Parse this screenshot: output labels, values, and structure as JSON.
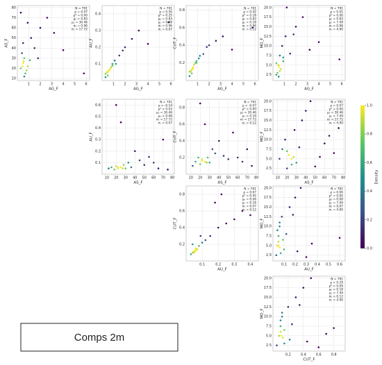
{
  "chart_data": [
    {
      "type": "scatter",
      "xlabel": "AG_F",
      "ylabel": "AS_F",
      "xlim": [
        0,
        6.3
      ],
      "ylim": [
        8,
        82
      ],
      "xticks": [
        1,
        2,
        3,
        4,
        5,
        6
      ],
      "yticks": [
        10,
        20,
        30,
        40,
        50,
        60,
        70,
        80
      ],
      "grid": true,
      "annotations": [
        "N = 791",
        "ρ = 0.07",
        "ρ² = 0.00",
        "μ₀ = 0.83",
        "μ₁ = 30.46",
        "σ₀ = 0.96",
        "σ₁ = 17.72"
      ],
      "x": [
        0.3,
        0.5,
        0.6,
        0.8,
        0.4,
        0.9,
        1.1,
        0.7,
        1.5,
        2.0,
        2.6,
        1.2,
        0.5,
        0.3,
        3.2,
        4.0,
        5.8,
        1.8,
        0.6,
        0.9,
        0.45,
        0.55
      ],
      "y": [
        20,
        25,
        30,
        18,
        35,
        22,
        28,
        15,
        40,
        60,
        70,
        50,
        45,
        75,
        55,
        38,
        15,
        30,
        12,
        65,
        22,
        27
      ]
    },
    {
      "type": "scatter",
      "xlabel": "AG_F",
      "ylabel": "AU_F",
      "xlim": [
        0,
        6.3
      ],
      "ylim": [
        0,
        0.45
      ],
      "xticks": [
        1,
        2,
        3,
        4,
        5,
        6
      ],
      "yticks": [
        0.1,
        0.2,
        0.3,
        0.4
      ],
      "grid": true,
      "annotations": [
        "N = 791",
        "ρ = 0.50",
        "ρ² = 0.25",
        "μ₀ = 0.83",
        "μ₁ = 0.08",
        "σ₀ = 0.96",
        "σ₁ = 0.07"
      ],
      "x": [
        0.3,
        0.5,
        0.6,
        0.8,
        0.4,
        0.9,
        1.1,
        0.7,
        1.5,
        2.0,
        2.6,
        1.2,
        0.5,
        0.3,
        3.2,
        4.0,
        5.8,
        1.8,
        0.6,
        0.9,
        0.45,
        0.55
      ],
      "y": [
        0.04,
        0.05,
        0.06,
        0.08,
        0.05,
        0.1,
        0.12,
        0.07,
        0.15,
        0.2,
        0.25,
        0.1,
        0.03,
        0.02,
        0.3,
        0.22,
        0.35,
        0.18,
        0.06,
        0.09,
        0.05,
        0.06
      ]
    },
    {
      "type": "scatter",
      "xlabel": "AG_F",
      "ylabel": "CUT_F",
      "xlim": [
        0,
        6.3
      ],
      "ylim": [
        0,
        0.85
      ],
      "xticks": [
        1,
        2,
        3,
        4,
        5,
        6
      ],
      "yticks": [
        0.2,
        0.4,
        0.6,
        0.8
      ],
      "grid": true,
      "annotations": [
        "N = 791",
        "ρ = 0.42",
        "ρ² = 0.18",
        "μ₀ = 0.83",
        "μ₁ = 0.18",
        "σ₀ = 0.96",
        "σ₁ = 0.12"
      ],
      "x": [
        0.3,
        0.5,
        0.6,
        0.8,
        0.4,
        0.9,
        1.1,
        0.7,
        1.5,
        2.0,
        2.6,
        1.2,
        0.5,
        0.3,
        3.2,
        4.0,
        5.8,
        1.8,
        0.6,
        0.9,
        0.45,
        0.55
      ],
      "y": [
        0.1,
        0.12,
        0.15,
        0.2,
        0.1,
        0.22,
        0.25,
        0.18,
        0.3,
        0.4,
        0.45,
        0.28,
        0.08,
        0.05,
        0.5,
        0.35,
        0.6,
        0.38,
        0.14,
        0.2,
        0.12,
        0.13
      ]
    },
    {
      "type": "scatter",
      "xlabel": "AG_F",
      "ylabel": "MO_F",
      "xlim": [
        0,
        6.3
      ],
      "ylim": [
        1,
        20.5
      ],
      "xticks": [
        1,
        2,
        3,
        4,
        5,
        6
      ],
      "yticks": [
        2.5,
        {
          "value": 5,
          "label": "5.0"
        },
        7.5,
        {
          "value": 10,
          "label": "10.0"
        },
        12.5,
        {
          "value": 15,
          "label": "15.0"
        },
        17.5,
        {
          "value": 20,
          "label": "20.0"
        }
      ],
      "grid": true,
      "annotations": [
        "N = 791",
        "ρ = 0.01",
        "ρ² = 0.00",
        "μ₀ = 0.83",
        "μ₁ = 7.49",
        "σ₀ = 0.96",
        "σ₁ = 4.90"
      ],
      "x": [
        0.3,
        0.5,
        0.6,
        0.8,
        0.4,
        0.9,
        1.1,
        0.7,
        1.5,
        2.0,
        2.6,
        1.2,
        0.5,
        0.3,
        3.2,
        4.0,
        5.8,
        1.8,
        0.6,
        0.9,
        0.45,
        0.55
      ],
      "y": [
        2.5,
        5,
        7.5,
        10,
        3,
        6,
        12.5,
        4,
        8,
        15,
        17.5,
        20,
        2,
        5.5,
        9,
        11,
        6.5,
        13,
        3.5,
        7,
        5,
        4.5
      ]
    },
    {
      "type": "scatter",
      "xlabel": "AS_F",
      "ylabel": "AU_F",
      "xlim": [
        5,
        82
      ],
      "ylim": [
        0,
        0.65
      ],
      "xticks": [
        10,
        20,
        30,
        40,
        50,
        60,
        70,
        80
      ],
      "yticks": [
        0.1,
        0.2,
        0.3,
        0.4,
        0.5,
        0.6
      ],
      "grid": true,
      "annotations": [
        "N = 791",
        "ρ = -0.14",
        "ρ² = 0.02",
        "μ₀ = 30.46",
        "μ₁ = 0.08",
        "σ₀ = 17.72",
        "σ₁ = 0.07"
      ],
      "x": [
        12,
        15,
        18,
        20,
        22,
        25,
        28,
        30,
        33,
        36,
        40,
        45,
        50,
        55,
        60,
        65,
        70,
        75,
        25,
        20,
        22,
        27
      ],
      "y": [
        0.05,
        0.06,
        0.04,
        0.07,
        0.05,
        0.06,
        0.08,
        0.05,
        0.1,
        0.06,
        0.2,
        0.12,
        0.08,
        0.15,
        0.1,
        0.05,
        0.3,
        0.04,
        0.45,
        0.6,
        0.06,
        0.05
      ]
    },
    {
      "type": "scatter",
      "xlabel": "AS_F",
      "ylabel": "CUT_F",
      "xlim": [
        5,
        82
      ],
      "ylim": [
        0,
        0.9
      ],
      "xticks": [
        10,
        20,
        30,
        40,
        50,
        60,
        70,
        80
      ],
      "yticks": [
        0.2,
        0.4,
        0.6,
        0.8
      ],
      "grid": true,
      "annotations": [
        "N = 791",
        "ρ = -0.07",
        "ρ² = 0.00",
        "μ₀ = 30.46",
        "μ₁ = 0.18",
        "σ₀ = 17.72",
        "σ₁ = 0.12"
      ],
      "x": [
        12,
        15,
        18,
        20,
        22,
        25,
        28,
        30,
        33,
        36,
        40,
        45,
        50,
        55,
        60,
        65,
        70,
        75,
        25,
        20,
        22,
        27
      ],
      "y": [
        0.1,
        0.15,
        0.2,
        0.12,
        0.18,
        0.15,
        0.2,
        0.14,
        0.3,
        0.25,
        0.4,
        0.22,
        0.18,
        0.5,
        0.2,
        0.15,
        0.3,
        0.1,
        0.6,
        0.85,
        0.16,
        0.14
      ]
    },
    {
      "type": "scatter",
      "xlabel": "AS_F",
      "ylabel": "MO_F",
      "xlim": [
        5,
        82
      ],
      "ylim": [
        1,
        20.5
      ],
      "xticks": [
        10,
        20,
        30,
        40,
        50,
        60,
        70,
        80
      ],
      "yticks": [
        2.5,
        {
          "value": 5,
          "label": "5.0"
        },
        7.5,
        {
          "value": 10,
          "label": "10.0"
        },
        12.5,
        {
          "value": 15,
          "label": "15.0"
        },
        17.5,
        {
          "value": 20,
          "label": "20.0"
        }
      ],
      "grid": true,
      "annotations": [
        "N = 791",
        "ρ = 0.07",
        "ρ² = 0.00",
        "μ₀ = 30.46",
        "μ₁ = 7.49",
        "σ₀ = 17.72",
        "σ₁ = 4.90"
      ],
      "x": [
        12,
        15,
        18,
        20,
        22,
        25,
        28,
        30,
        33,
        36,
        40,
        45,
        50,
        55,
        60,
        65,
        70,
        75,
        25,
        20,
        22,
        27
      ],
      "y": [
        5,
        7.5,
        10,
        2.5,
        6,
        5,
        12.5,
        4,
        8,
        15,
        17.5,
        20,
        3,
        5.5,
        9,
        11,
        6.5,
        13,
        3.5,
        7,
        6,
        5.5
      ]
    },
    {
      "type": "scatter",
      "xlabel": "AU_F",
      "ylabel": "CUT_F",
      "xlim": [
        0,
        0.45
      ],
      "ylim": [
        0,
        0.9
      ],
      "xticks": [
        0.1,
        0.2,
        0.3,
        0.4
      ],
      "yticks": [
        0.2,
        0.4,
        0.6,
        0.8
      ],
      "grid": true,
      "annotations": [
        "N = 791",
        "ρ = 0.67",
        "ρ² = 0.45",
        "μ₀ = 0.08",
        "μ₁ = 0.18",
        "σ₀ = 0.07",
        "σ₁ = 0.12"
      ],
      "x": [
        0.03,
        0.04,
        0.05,
        0.06,
        0.07,
        0.05,
        0.08,
        0.1,
        0.12,
        0.15,
        0.2,
        0.25,
        0.3,
        0.35,
        0.04,
        0.06,
        0.09,
        0.18,
        0.22,
        0.4,
        0.05,
        0.06
      ],
      "y": [
        0.08,
        0.1,
        0.12,
        0.15,
        0.14,
        0.1,
        0.18,
        0.22,
        0.25,
        0.3,
        0.4,
        0.45,
        0.5,
        0.6,
        0.2,
        0.12,
        0.3,
        0.7,
        0.8,
        0.55,
        0.11,
        0.13
      ]
    },
    {
      "type": "scatter",
      "xlabel": "AU_F",
      "ylabel": "MO_F",
      "xlim": [
        0,
        0.65
      ],
      "ylim": [
        1,
        20.5
      ],
      "xticks": [
        0.1,
        0.2,
        0.3,
        0.4,
        0.5,
        0.6
      ],
      "yticks": [
        2.5,
        {
          "value": 5,
          "label": "5.0"
        },
        7.5,
        {
          "value": 10,
          "label": "10.0"
        },
        12.5,
        {
          "value": 15,
          "label": "15.0"
        },
        17.5,
        {
          "value": 20,
          "label": "20.0"
        }
      ],
      "grid": true,
      "annotations": [
        "N = 791",
        "ρ = 0.06",
        "ρ² = 0.00",
        "μ₀ = 0.08",
        "μ₁ = 7.49",
        "σ₀ = 0.07",
        "σ₁ = 4.90"
      ],
      "x": [
        0.03,
        0.04,
        0.05,
        0.06,
        0.07,
        0.05,
        0.08,
        0.1,
        0.12,
        0.15,
        0.2,
        0.25,
        0.3,
        0.35,
        0.04,
        0.06,
        0.09,
        0.18,
        0.22,
        0.6,
        0.05,
        0.06
      ],
      "y": [
        2.5,
        5,
        7.5,
        10,
        3,
        6,
        12.5,
        4,
        8,
        15,
        17.5,
        20,
        2,
        5.5,
        9,
        11,
        6.5,
        13,
        3.5,
        7,
        5,
        4.5
      ]
    },
    {
      "type": "scatter",
      "xlabel": "CUT_F",
      "ylabel": "MO_F",
      "xlim": [
        0,
        0.95
      ],
      "ylim": [
        1,
        20.5
      ],
      "xticks": [
        0.2,
        0.4,
        0.6,
        0.8
      ],
      "yticks": [
        2.5,
        {
          "value": 5,
          "label": "5.0"
        },
        7.5,
        {
          "value": 10,
          "label": "10.0"
        },
        12.5,
        {
          "value": 15,
          "label": "15.0"
        },
        17.5,
        {
          "value": 20,
          "label": "20.0"
        }
      ],
      "grid": true,
      "annotations": [
        "N = 791",
        "ρ = 0.29",
        "ρ² = 0.09",
        "μ₀ = 0.18",
        "μ₁ = 7.49",
        "σ₀ = 0.12",
        "σ₁ = 4.90"
      ],
      "x": [
        0.05,
        0.08,
        0.1,
        0.12,
        0.15,
        0.1,
        0.2,
        0.22,
        0.25,
        0.3,
        0.4,
        0.5,
        0.6,
        0.7,
        0.1,
        0.12,
        0.15,
        0.35,
        0.45,
        0.8,
        0.11,
        0.13
      ],
      "y": [
        2.5,
        5,
        7.5,
        10,
        3,
        6,
        12.5,
        4,
        8,
        15,
        17.5,
        20,
        2,
        5.5,
        9,
        11,
        6.5,
        13,
        3.5,
        7,
        5,
        4.5
      ]
    },
    {
      "type": "colorbar",
      "label": "Density",
      "ylim": [
        0,
        1
      ],
      "yticks": [
        {
          "value": 0,
          "label": "0.0"
        },
        0.2,
        0.4,
        0.6,
        0.8,
        {
          "value": 1,
          "label": "1.0"
        }
      ],
      "colormap": [
        "#440154",
        "#3b528b",
        "#21918c",
        "#5ec962",
        "#fde725"
      ]
    }
  ],
  "caption": "Comps 2m"
}
